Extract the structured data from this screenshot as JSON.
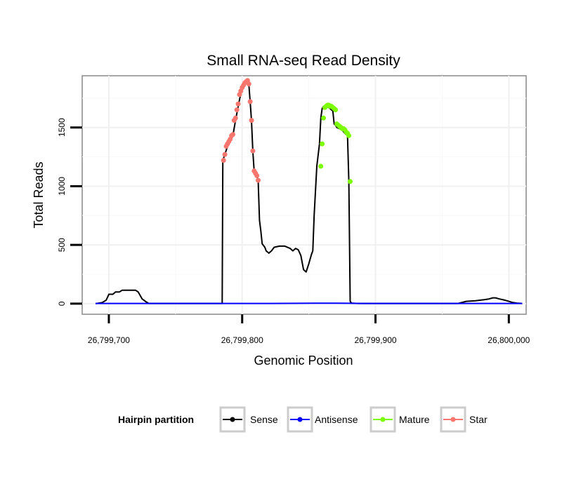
{
  "chart_data": {
    "type": "line",
    "title": "Small RNA-seq Read Density",
    "xlabel": "Genomic Position",
    "ylabel": "Total Reads",
    "xlim": [
      26799680,
      26800013
    ],
    "ylim": [
      -90,
      1940
    ],
    "x_ticks": [
      26799700,
      26799800,
      26799900,
      26800000
    ],
    "x_tick_labels": [
      "26,799,700",
      "26,799,800",
      "26,799,900",
      "26,800,000"
    ],
    "y_ticks": [
      0,
      500,
      1000,
      1500
    ],
    "y_tick_labels": [
      "0",
      "500",
      "1000",
      "1500"
    ],
    "grid": true,
    "legend": {
      "title": "Hairpin partition",
      "position": "bottom",
      "entries": [
        {
          "label": "Sense",
          "color": "#000000"
        },
        {
          "label": "Antisense",
          "color": "#0000ff"
        },
        {
          "label": "Mature",
          "color": "#7cfc00"
        },
        {
          "label": "Star",
          "color": "#f8766d"
        }
      ]
    },
    "series": [
      {
        "name": "Sense",
        "color": "#000000",
        "x": [
          26799690,
          26799695,
          26799698,
          26799700,
          26799703,
          26799705,
          26799708,
          26799710,
          26799712,
          26799715,
          26799718,
          26799720,
          26799722,
          26799725,
          26799728,
          26799730,
          26799760,
          26799785,
          26799785.5,
          26799787,
          26799789,
          26799791,
          26799793,
          26799795,
          26799797,
          26799799,
          26799801,
          26799802,
          26799803,
          26799804,
          26799805,
          26799806,
          26799807,
          26799808,
          26799809,
          26799810,
          26799811,
          26799812,
          26799813,
          26799814,
          26799815,
          26799817,
          26799818,
          26799820,
          26799822,
          26799824,
          26799828,
          26799832,
          26799836,
          26799838,
          26799840,
          26799842,
          26799844,
          26799846,
          26799848,
          26799850,
          26799852,
          26799853,
          26799854,
          26799856,
          26799858,
          26799859,
          26799860,
          26799861,
          26799862,
          26799863,
          26799864,
          26799865,
          26799866,
          26799867,
          26799868,
          26799869,
          26799870,
          26799871,
          26799873,
          26799875,
          26799877,
          26799878,
          26799879,
          26799880,
          26799881,
          26799882,
          26799886,
          26799890,
          26799910,
          26799930,
          26799950,
          26799960,
          26799962,
          26799968,
          26799975,
          26799982,
          26799985,
          26799988,
          26799990,
          26799993,
          26799997,
          26800000,
          26800003,
          26800006,
          26800010
        ],
        "y": [
          0,
          10,
          30,
          80,
          80,
          100,
          100,
          115,
          115,
          115,
          115,
          115,
          100,
          40,
          15,
          2,
          2,
          2,
          1220,
          1270,
          1340,
          1380,
          1430,
          1560,
          1680,
          1790,
          1860,
          1880,
          1890,
          1900,
          1870,
          1720,
          1560,
          1300,
          1130,
          1110,
          1090,
          1050,
          710,
          620,
          510,
          480,
          450,
          430,
          450,
          480,
          490,
          490,
          470,
          450,
          470,
          460,
          410,
          290,
          270,
          340,
          420,
          450,
          750,
          1170,
          1360,
          1580,
          1660,
          1680,
          1680,
          1680,
          1680,
          1670,
          1660,
          1650,
          1640,
          1530,
          1520,
          1500,
          1490,
          1480,
          1450,
          1440,
          1430,
          1040,
          20,
          5,
          2,
          2,
          2,
          2,
          2,
          2,
          2,
          20,
          25,
          35,
          40,
          50,
          50,
          40,
          30,
          20,
          10,
          5,
          2
        ],
        "show_markers": false
      },
      {
        "name": "Antisense",
        "color": "#0000ff",
        "x": [
          26799690,
          26799700,
          26799720,
          26799750,
          26799790,
          26799820,
          26799845,
          26799855,
          26799870,
          26799880,
          26799890,
          26799930,
          26799960,
          26799990,
          26800010
        ],
        "y": [
          2,
          2,
          2,
          2,
          2,
          2,
          3,
          4,
          4,
          3,
          2,
          2,
          2,
          2,
          2
        ],
        "show_markers": false
      },
      {
        "name": "Mature",
        "color": "#7cfc00",
        "x": [
          26799859,
          26799860,
          26799861,
          26799862,
          26799863,
          26799864,
          26799865,
          26799866,
          26799867,
          26799868,
          26799869,
          26799870,
          26799871,
          26799872,
          26799873,
          26799874,
          26799875,
          26799876,
          26799877,
          26799878,
          26799879,
          26799880,
          26799881
        ],
        "y": [
          1170,
          1360,
          1580,
          1670,
          1680,
          1690,
          1690,
          1680,
          1680,
          1670,
          1660,
          1650,
          1530,
          1520,
          1510,
          1500,
          1490,
          1490,
          1480,
          1460,
          1450,
          1430,
          1040
        ],
        "show_markers": true
      },
      {
        "name": "Star",
        "color": "#f8766d",
        "x": [
          26799786,
          26799787,
          26799788,
          26799789,
          26799790,
          26799791,
          26799792,
          26799793,
          26799794,
          26799795,
          26799796,
          26799797,
          26799798,
          26799799,
          26799800,
          26799801,
          26799802,
          26799803,
          26799804,
          26799805,
          26799806,
          26799807,
          26799808,
          26799809,
          26799810,
          26799811,
          26799812
        ],
        "y": [
          1220,
          1270,
          1340,
          1360,
          1380,
          1400,
          1430,
          1440,
          1560,
          1580,
          1650,
          1700,
          1780,
          1810,
          1840,
          1860,
          1880,
          1890,
          1900,
          1870,
          1720,
          1560,
          1300,
          1130,
          1110,
          1090,
          1050
        ],
        "show_markers": true
      }
    ]
  }
}
